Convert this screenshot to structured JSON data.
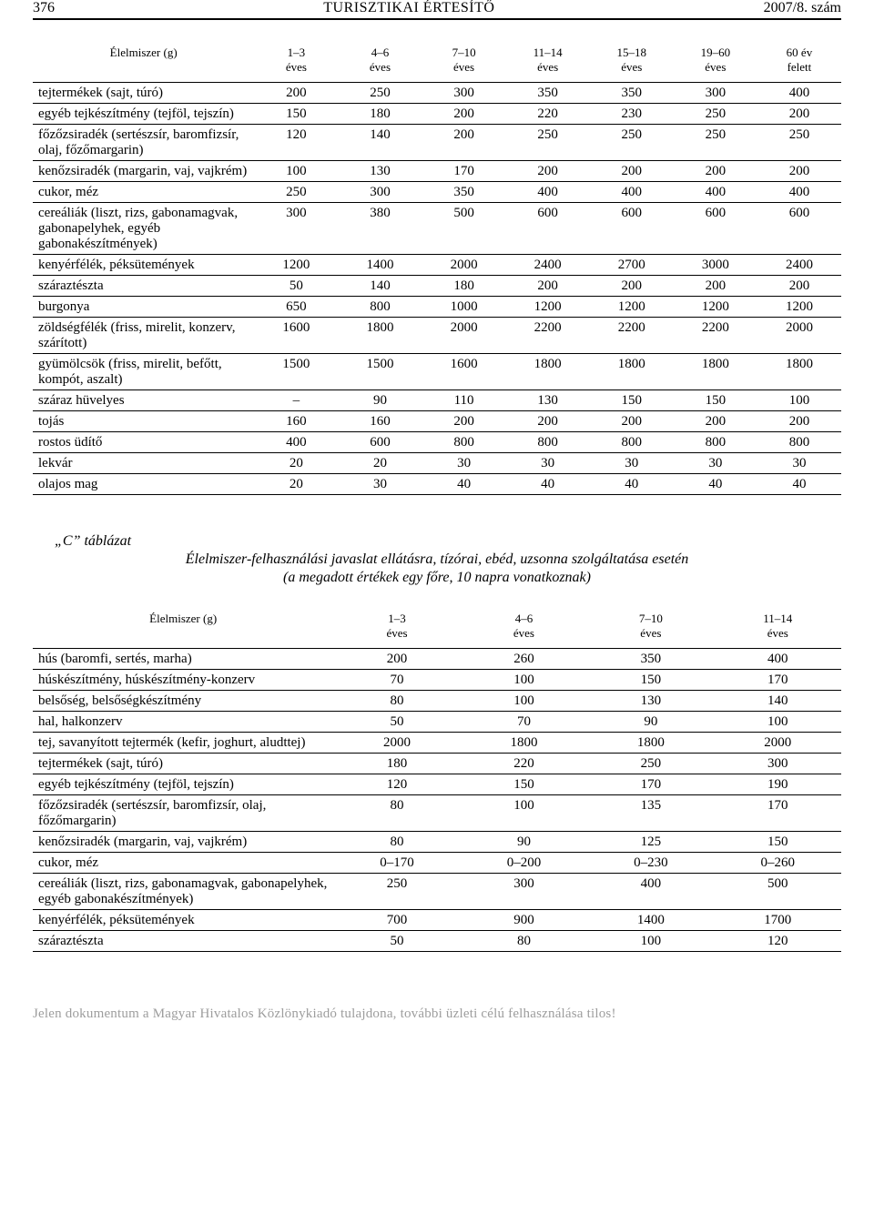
{
  "header": {
    "page_no": "376",
    "title": "TURISZTIKAI ÉRTESÍTŐ",
    "issue": "2007/8. szám"
  },
  "tableA": {
    "type": "table",
    "col_widths_pct": [
      27.4,
      10.37,
      10.37,
      10.37,
      10.37,
      10.37,
      10.37,
      10.37
    ],
    "header_fontsize": 13,
    "body_fontsize": 15,
    "border_color": "#000000",
    "label_head": "Élelmiszer (g)",
    "columns": [
      "1–3\néves",
      "4–6\néves",
      "7–10\néves",
      "11–14\néves",
      "15–18\néves",
      "19–60\néves",
      "60 év\nfelett"
    ],
    "rows": [
      {
        "label": "tejtermékek (sajt, túró)",
        "vals": [
          "200",
          "250",
          "300",
          "350",
          "350",
          "300",
          "400"
        ]
      },
      {
        "label": "egyéb tejkészítmény (tejföl, tejszín)",
        "vals": [
          "150",
          "180",
          "200",
          "220",
          "230",
          "250",
          "200"
        ]
      },
      {
        "label": "főzőzsiradék (sertészsír, baromfizsír, olaj, főzőmargarin)",
        "vals": [
          "120",
          "140",
          "200",
          "250",
          "250",
          "250",
          "250"
        ]
      },
      {
        "label": "kenőzsiradék (margarin, vaj, vajkrém)",
        "vals": [
          "100",
          "130",
          "170",
          "200",
          "200",
          "200",
          "200"
        ]
      },
      {
        "label": "cukor, méz",
        "vals": [
          "250",
          "300",
          "350",
          "400",
          "400",
          "400",
          "400"
        ]
      },
      {
        "label": "cereáliák (liszt, rizs, gabonamagvak, gabonapelyhek, egyéb gabonakészítmények)",
        "vals": [
          "300",
          "380",
          "500",
          "600",
          "600",
          "600",
          "600"
        ]
      },
      {
        "label": "kenyérfélék, péksütemények",
        "vals": [
          "1200",
          "1400",
          "2000",
          "2400",
          "2700",
          "3000",
          "2400"
        ]
      },
      {
        "label": "száraztészta",
        "vals": [
          "50",
          "140",
          "180",
          "200",
          "200",
          "200",
          "200"
        ]
      },
      {
        "label": "burgonya",
        "vals": [
          "650",
          "800",
          "1000",
          "1200",
          "1200",
          "1200",
          "1200"
        ]
      },
      {
        "label": "zöldségfélék (friss, mirelit, konzerv, szárított)",
        "vals": [
          "1600",
          "1800",
          "2000",
          "2200",
          "2200",
          "2200",
          "2000"
        ]
      },
      {
        "label": "gyümölcsök (friss, mirelit, befőtt, kompót, aszalt)",
        "vals": [
          "1500",
          "1500",
          "1600",
          "1800",
          "1800",
          "1800",
          "1800"
        ]
      },
      {
        "label": "száraz hüvelyes",
        "vals": [
          "–",
          "90",
          "110",
          "130",
          "150",
          "150",
          "100"
        ]
      },
      {
        "label": "tojás",
        "vals": [
          "160",
          "160",
          "200",
          "200",
          "200",
          "200",
          "200"
        ]
      },
      {
        "label": "rostos üdítő",
        "vals": [
          "400",
          "600",
          "800",
          "800",
          "800",
          "800",
          "800"
        ]
      },
      {
        "label": "lekvár",
        "vals": [
          "20",
          "20",
          "30",
          "30",
          "30",
          "30",
          "30"
        ]
      },
      {
        "label": "olajos mag",
        "vals": [
          "20",
          "30",
          "40",
          "40",
          "40",
          "40",
          "40"
        ]
      }
    ]
  },
  "section": {
    "label": "„C” táblázat",
    "title": "Élelmiszer-felhasználási javaslat ellátásra, tízórai, ebéd, uzsonna szolgáltatása esetén",
    "sub": "(a megadott értékek egy főre, 10 napra vonatkoznak)"
  },
  "tableC": {
    "type": "table",
    "col_widths_pct": [
      37.2,
      15.7,
      15.7,
      15.7,
      15.7
    ],
    "header_fontsize": 13,
    "body_fontsize": 15,
    "border_color": "#000000",
    "label_head": "Élelmiszer (g)",
    "columns": [
      "1–3\néves",
      "4–6\néves",
      "7–10\néves",
      "11–14\néves"
    ],
    "rows": [
      {
        "label": "hús (baromfi, sertés, marha)",
        "vals": [
          "200",
          "260",
          "350",
          "400"
        ]
      },
      {
        "label": "húskészítmény, húskészítmény-konzerv",
        "vals": [
          "70",
          "100",
          "150",
          "170"
        ]
      },
      {
        "label": "belsőség, belsőségkészítmény",
        "vals": [
          "80",
          "100",
          "130",
          "140"
        ]
      },
      {
        "label": "hal, halkonzerv",
        "vals": [
          "50",
          "70",
          "90",
          "100"
        ]
      },
      {
        "label": "tej, savanyított tejtermék (kefir, joghurt, aludttej)",
        "vals": [
          "2000",
          "1800",
          "1800",
          "2000"
        ]
      },
      {
        "label": "tejtermékek (sajt, túró)",
        "vals": [
          "180",
          "220",
          "250",
          "300"
        ]
      },
      {
        "label": "egyéb tejkészítmény (tejföl, tejszín)",
        "vals": [
          "120",
          "150",
          "170",
          "190"
        ]
      },
      {
        "label": "főzőzsiradék (sertészsír, baromfizsír, olaj, főzőmargarin)",
        "vals": [
          "80",
          "100",
          "135",
          "170"
        ]
      },
      {
        "label": "kenőzsiradék (margarin, vaj, vajkrém)",
        "vals": [
          "80",
          "90",
          "125",
          "150"
        ]
      },
      {
        "label": "cukor, méz",
        "vals": [
          "0–170",
          "0–200",
          "0–230",
          "0–260"
        ]
      },
      {
        "label": "cereáliák (liszt, rizs, gabonamagvak, gabonapelyhek, egyéb gabonakészítmények)",
        "vals": [
          "250",
          "300",
          "400",
          "500"
        ]
      },
      {
        "label": "kenyérfélék, péksütemények",
        "vals": [
          "700",
          "900",
          "1400",
          "1700"
        ]
      },
      {
        "label": "száraztészta",
        "vals": [
          "50",
          "80",
          "100",
          "120"
        ]
      }
    ]
  },
  "footer": {
    "text": "Jelen dokumentum a Magyar Hivatalos Közlönykiadó tulajdona, további üzleti célú felhasználása tilos!"
  }
}
